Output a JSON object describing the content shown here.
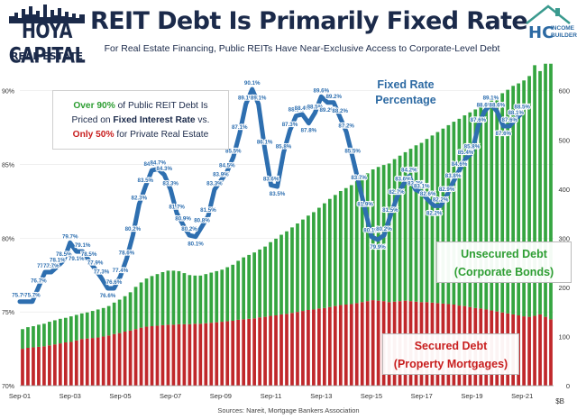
{
  "header": {
    "title": "REIT Debt Is Primarily Fixed Rate",
    "subtitle": "For Real Estate Financing, Public REITs Have Near-Exclusive Access to Corporate-Level Debt",
    "brand_left": "HOYA CAPITAL",
    "brand_left_sub": "REAL ESTATE",
    "brand_right_initials": "HC",
    "brand_right_line1": "INCOME",
    "brand_right_line2": "BUILDER"
  },
  "callout": {
    "part1": "Over 90%",
    "part2": " of Public REIT Debt Is",
    "part3": "Priced on ",
    "part4": "Fixed Interest Rate",
    "part5": " vs.",
    "part6": "Only 50%",
    "part7": " for Private Real Estate"
  },
  "annotations": {
    "fixed_line1": "Fixed Rate",
    "fixed_line2": "Percentage",
    "unsecured_line1": "Unsecured Debt",
    "unsecured_line2": "(Corporate Bonds)",
    "secured_line1": "Secured Debt",
    "secured_line2": "(Property Mortgages)"
  },
  "source": "Sources: Nareit, Mortgage Bankers Association",
  "colors": {
    "secured": "#c0282b",
    "unsecured": "#35a540",
    "line": "#2e6fb0",
    "navy": "#1b2a4a"
  },
  "chart_data": {
    "type": "bar",
    "x_ticks": [
      "Sep-01",
      "Sep-03",
      "Sep-05",
      "Sep-07",
      "Sep-09",
      "Sep-11",
      "Sep-13",
      "Sep-15",
      "Sep-17",
      "Sep-19",
      "Sep-21"
    ],
    "x_range": [
      "Sep-01",
      "Dec-22"
    ],
    "y_left": {
      "range": [
        70,
        92
      ],
      "ticks": [
        "70%",
        "75%",
        "80%",
        "85%",
        "90%"
      ]
    },
    "y_right": {
      "range": [
        0,
        660
      ],
      "ticks": [
        "0",
        "100",
        "200",
        "300",
        "400",
        "500",
        "600"
      ],
      "unit": "$B"
    },
    "series": [
      {
        "name": "Secured Debt (Property Mortgages)",
        "type": "stacked-bar",
        "values": [
          75,
          77,
          78,
          79,
          80,
          82,
          84,
          86,
          88,
          89,
          92,
          95,
          96,
          97,
          98,
          100,
          102,
          105,
          107,
          110,
          112,
          115,
          118,
          120,
          121,
          122,
          123,
          124,
          124,
          125,
          125,
          125,
          126,
          126,
          127,
          128,
          129,
          130,
          131,
          132,
          134,
          135,
          136,
          137,
          139,
          140,
          142,
          143,
          145,
          146,
          148,
          150,
          152,
          154,
          155,
          157,
          158,
          160,
          162,
          164,
          165,
          166,
          168,
          170,
          172,
          174,
          173,
          172,
          170,
          171,
          172,
          173,
          172,
          171,
          170,
          170,
          169,
          168,
          167,
          166,
          165,
          163,
          162,
          160,
          158,
          157,
          155,
          153,
          151,
          149,
          147,
          145,
          143,
          141,
          140,
          142,
          145,
          140,
          135
        ]
      },
      {
        "name": "Unsecured Debt (Corporate Bonds)",
        "type": "stacked-bar",
        "values": [
          40,
          42,
          43,
          45,
          46,
          48,
          49,
          50,
          50,
          52,
          52,
          52,
          53,
          55,
          57,
          58,
          60,
          64,
          68,
          72,
          78,
          86,
          92,
          98,
          102,
          105,
          108,
          110,
          110,
          108,
          104,
          100,
          98,
          98,
          100,
          102,
          104,
          106,
          110,
          114,
          120,
          126,
          130,
          134,
          138,
          143,
          150,
          156,
          162,
          168,
          174,
          180,
          186,
          192,
          198,
          205,
          213,
          220,
          226,
          232,
          237,
          242,
          248,
          254,
          260,
          266,
          272,
          277,
          282,
          290,
          296,
          302,
          310,
          318,
          324,
          332,
          340,
          348,
          356,
          364,
          372,
          380,
          388,
          396,
          404,
          412,
          420,
          430,
          438,
          446,
          455,
          465,
          472,
          480,
          490,
          510,
          495,
          515,
          520
        ]
      },
      {
        "name": "Fixed Rate Percentage",
        "type": "line",
        "labels": [
          {
            "x": "Sep-01",
            "y": 75.7
          },
          {
            "x": "Mar-02",
            "y": 75.7
          },
          {
            "x": "Jun-02",
            "y": 76.7
          },
          {
            "x": "Sep-02",
            "y": 77.7
          },
          {
            "x": "Dec-02",
            "y": 77.7
          },
          {
            "x": "Mar-03",
            "y": 78.1
          },
          {
            "x": "Jun-03",
            "y": 78.5
          },
          {
            "x": "Sep-03",
            "y": 79.7
          },
          {
            "x": "Dec-03",
            "y": 79.1
          },
          {
            "x": "Mar-04",
            "y": 79.1
          },
          {
            "x": "Jun-04",
            "y": 78.5
          },
          {
            "x": "Sep-04",
            "y": 77.9
          },
          {
            "x": "Dec-04",
            "y": 77.3
          },
          {
            "x": "Mar-05",
            "y": 76.6
          },
          {
            "x": "Jun-05",
            "y": 76.6
          },
          {
            "x": "Sep-05",
            "y": 77.4
          },
          {
            "x": "Dec-05",
            "y": 78.6
          },
          {
            "x": "Mar-06",
            "y": 80.2
          },
          {
            "x": "Jun-06",
            "y": 82.3
          },
          {
            "x": "Sep-06",
            "y": 83.5
          },
          {
            "x": "Dec-06",
            "y": 84.6
          },
          {
            "x": "Mar-07",
            "y": 84.7
          },
          {
            "x": "Jun-07",
            "y": 84.3
          },
          {
            "x": "Sep-07",
            "y": 83.3
          },
          {
            "x": "Dec-07",
            "y": 81.7
          },
          {
            "x": "Mar-08",
            "y": 80.9
          },
          {
            "x": "Jun-08",
            "y": 80.2
          },
          {
            "x": "Sep-08",
            "y": 80.1
          },
          {
            "x": "Dec-08",
            "y": 80.8
          },
          {
            "x": "Mar-09",
            "y": 81.5
          },
          {
            "x": "Jun-09",
            "y": 83.3
          },
          {
            "x": "Sep-09",
            "y": 83.9
          },
          {
            "x": "Dec-09",
            "y": 84.5
          },
          {
            "x": "Mar-10",
            "y": 85.5
          },
          {
            "x": "Jun-10",
            "y": 87.1
          },
          {
            "x": "Sep-10",
            "y": 89.1
          },
          {
            "x": "Dec-10",
            "y": 90.1
          },
          {
            "x": "Mar-11",
            "y": 89.1
          },
          {
            "x": "Jun-11",
            "y": 86.1
          },
          {
            "x": "Sep-11",
            "y": 83.6
          },
          {
            "x": "Dec-11",
            "y": 83.5
          },
          {
            "x": "Mar-12",
            "y": 85.8
          },
          {
            "x": "Jun-12",
            "y": 87.3
          },
          {
            "x": "Sep-12",
            "y": 88.3
          },
          {
            "x": "Dec-12",
            "y": 88.4
          },
          {
            "x": "Mar-13",
            "y": 87.8
          },
          {
            "x": "Jun-13",
            "y": 88.5
          },
          {
            "x": "Sep-13",
            "y": 89.6
          },
          {
            "x": "Dec-13",
            "y": 89.2
          },
          {
            "x": "Mar-14",
            "y": 89.2
          },
          {
            "x": "Jun-14",
            "y": 88.2
          },
          {
            "x": "Sep-14",
            "y": 87.2
          },
          {
            "x": "Dec-14",
            "y": 85.5
          },
          {
            "x": "Mar-15",
            "y": 83.7
          },
          {
            "x": "Jun-15",
            "y": 81.9
          },
          {
            "x": "Sep-15",
            "y": 80.1
          },
          {
            "x": "Dec-15",
            "y": 79.9
          },
          {
            "x": "Mar-16",
            "y": 80.2
          },
          {
            "x": "Jun-16",
            "y": 81.5
          },
          {
            "x": "Sep-16",
            "y": 82.7
          },
          {
            "x": "Dec-16",
            "y": 83.6
          },
          {
            "x": "Mar-17",
            "y": 84.2
          },
          {
            "x": "Jun-17",
            "y": 83.3
          },
          {
            "x": "Sep-17",
            "y": 83.1
          },
          {
            "x": "Dec-17",
            "y": 82.6
          },
          {
            "x": "Mar-18",
            "y": 82.2
          },
          {
            "x": "Jun-18",
            "y": 82.2
          },
          {
            "x": "Sep-18",
            "y": 82.9
          },
          {
            "x": "Dec-18",
            "y": 83.8
          },
          {
            "x": "Mar-19",
            "y": 84.6
          },
          {
            "x": "Jun-19",
            "y": 85.4
          },
          {
            "x": "Sep-19",
            "y": 85.8
          },
          {
            "x": "Dec-19",
            "y": 87.6
          },
          {
            "x": "Mar-20",
            "y": 88.6
          },
          {
            "x": "Jun-20",
            "y": 89.1
          },
          {
            "x": "Sep-20",
            "y": 88.6
          },
          {
            "x": "Dec-20",
            "y": 87.6
          },
          {
            "x": "Mar-21",
            "y": 87.6
          },
          {
            "x": "Jun-21",
            "y": 88.1
          },
          {
            "x": "Sep-21",
            "y": 88.5
          }
        ]
      }
    ]
  }
}
